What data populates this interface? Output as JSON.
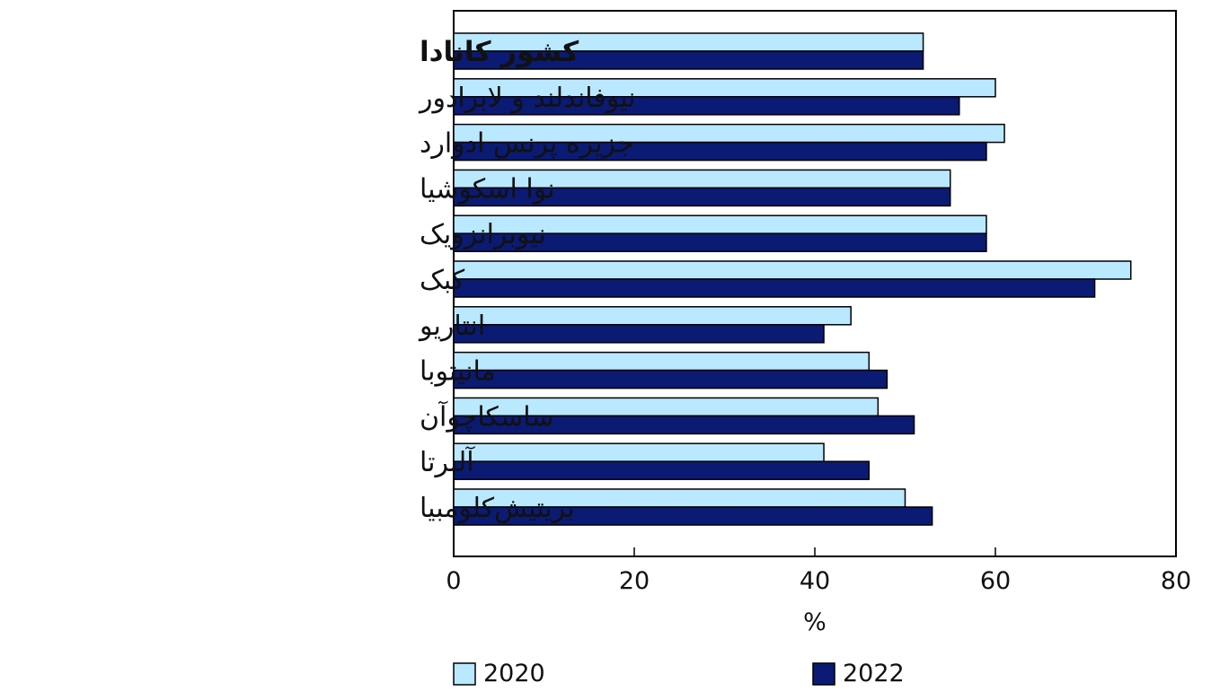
{
  "chart_data": {
    "type": "bar",
    "orientation": "horizontal",
    "categories": [
      "کشور کانادا",
      "نیوفاندلند و لابرادور",
      "جزیره پرنس ادوارد",
      "نوا اسکوشیا",
      "نیوبرانزویک",
      "کبک",
      "انتاریو",
      "مانیتوبا",
      "ساسکاچوآن",
      "آلبرتا",
      "بریتیش‌کلومبیا"
    ],
    "series": [
      {
        "name": "2020",
        "values": [
          52,
          60,
          61,
          55,
          59,
          75,
          44,
          46,
          47,
          41,
          50
        ],
        "color": "#b9e8ff"
      },
      {
        "name": "2022",
        "values": [
          52,
          56,
          59,
          55,
          59,
          71,
          41,
          48,
          51,
          46,
          53
        ],
        "color": "#0b1b74"
      }
    ],
    "xlabel": "%",
    "xlim": [
      0,
      80
    ],
    "xticks": [
      "0",
      "20",
      "40",
      "60",
      "80"
    ],
    "grid": false,
    "legend_position": "bottom",
    "bold_category": "کشور کانادا"
  }
}
